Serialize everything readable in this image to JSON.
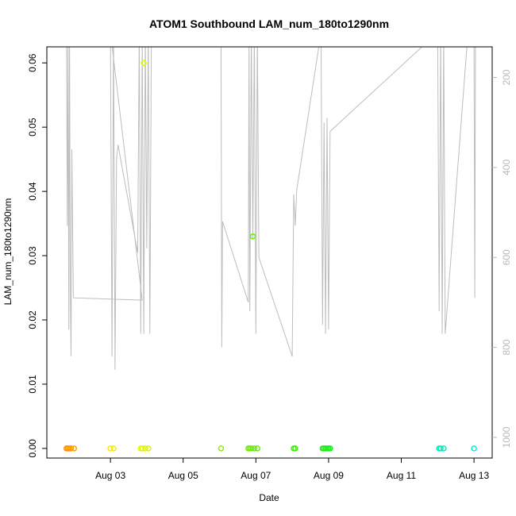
{
  "chart_data": {
    "type": "scatter",
    "title": "ATOM1 Southbound LAM_num_180to1290nm",
    "xlabel": "Date",
    "ylabel": "LAM_num_180to1290nm",
    "x_unit": "date",
    "xlim": [
      "2023-08-01T06:00",
      "2023-08-13T12:00"
    ],
    "ylim": [
      -0.0015,
      0.0625
    ],
    "x_ticks": [
      {
        "value": "2023-08-03",
        "label": "Aug 03"
      },
      {
        "value": "2023-08-05",
        "label": "Aug 05"
      },
      {
        "value": "2023-08-07",
        "label": "Aug 07"
      },
      {
        "value": "2023-08-09",
        "label": "Aug 09"
      },
      {
        "value": "2023-08-11",
        "label": "Aug 11"
      },
      {
        "value": "2023-08-13",
        "label": "Aug 13"
      }
    ],
    "y_ticks": [
      0.0,
      0.01,
      0.02,
      0.03,
      0.04,
      0.05,
      0.06
    ],
    "y_tick_labels": [
      "0.00",
      "0.01",
      "0.02",
      "0.03",
      "0.04",
      "0.05",
      "0.06"
    ],
    "right_axis": {
      "reversed": true,
      "ylim": [
        1046,
        132
      ],
      "ticks": [
        200,
        400,
        600,
        800,
        1000
      ],
      "tick_labels": [
        "200",
        "400",
        "600",
        "800",
        "1000"
      ],
      "color": "#b8b8b8"
    },
    "grid": false,
    "legend": "none",
    "points_series": {
      "marker": "open-circle",
      "color_scale": "time (orange to cyan)",
      "points": [
        {
          "x": "2023-08-01T19:00",
          "y": 0.0,
          "color": "#ff8c00"
        },
        {
          "x": "2023-08-01T20:00",
          "y": 0.0,
          "color": "#ff8c00"
        },
        {
          "x": "2023-08-01T21:00",
          "y": 0.0,
          "color": "#ff9600"
        },
        {
          "x": "2023-08-01T22:00",
          "y": 0.0,
          "color": "#ff9a00"
        },
        {
          "x": "2023-08-02T00:00",
          "y": 0.0,
          "color": "#ffa000"
        },
        {
          "x": "2023-08-03T00:00",
          "y": 0.0,
          "color": "#ffe800"
        },
        {
          "x": "2023-08-03T02:00",
          "y": 0.0,
          "color": "#f0f000"
        },
        {
          "x": "2023-08-03T20:00",
          "y": 0.0,
          "color": "#e6f500"
        },
        {
          "x": "2023-08-03T21:00",
          "y": 0.0,
          "color": "#e6f500"
        },
        {
          "x": "2023-08-03T22:00",
          "y": 0.06,
          "color": "#e0f500"
        },
        {
          "x": "2023-08-03T23:00",
          "y": 0.0,
          "color": "#ddf500"
        },
        {
          "x": "2023-08-04T01:00",
          "y": 0.0,
          "color": "#d8f500"
        },
        {
          "x": "2023-08-06T01:00",
          "y": 0.0,
          "color": "#8ff000"
        },
        {
          "x": "2023-08-06T19:00",
          "y": 0.0,
          "color": "#6ef000"
        },
        {
          "x": "2023-08-06T20:00",
          "y": 0.0,
          "color": "#6cf000"
        },
        {
          "x": "2023-08-06T21:00",
          "y": 0.0,
          "color": "#6af000"
        },
        {
          "x": "2023-08-06T22:00",
          "y": 0.033,
          "color": "#68f000"
        },
        {
          "x": "2023-08-06T23:00",
          "y": 0.0,
          "color": "#66f000"
        },
        {
          "x": "2023-08-07T01:00",
          "y": 0.0,
          "color": "#60f000"
        },
        {
          "x": "2023-08-08T01:00",
          "y": 0.0,
          "color": "#3cf000"
        },
        {
          "x": "2023-08-08T02:00",
          "y": 0.0,
          "color": "#3af000"
        },
        {
          "x": "2023-08-08T20:00",
          "y": 0.0,
          "color": "#1ef010"
        },
        {
          "x": "2023-08-08T21:00",
          "y": 0.0,
          "color": "#1cf010"
        },
        {
          "x": "2023-08-08T22:00",
          "y": 0.0,
          "color": "#1af014"
        },
        {
          "x": "2023-08-08T23:00",
          "y": 0.0,
          "color": "#18f018"
        },
        {
          "x": "2023-08-09T00:00",
          "y": 0.0,
          "color": "#16f01c"
        },
        {
          "x": "2023-08-09T01:00",
          "y": 0.0,
          "color": "#14f020"
        },
        {
          "x": "2023-08-12T01:00",
          "y": 0.0,
          "color": "#00f0b4"
        },
        {
          "x": "2023-08-12T02:00",
          "y": 0.0,
          "color": "#00f0b8"
        },
        {
          "x": "2023-08-12T04:00",
          "y": 0.0,
          "color": "#00f0c0"
        },
        {
          "x": "2023-08-13T00:00",
          "y": 0.0,
          "color": "#00f0dc"
        }
      ]
    },
    "line_series": {
      "axis": "right",
      "color": "#bdbdbd",
      "points": [
        [
          "2023-08-01T19:00",
          100
        ],
        [
          "2023-08-01T19:30",
          530
        ],
        [
          "2023-08-01T20:00",
          100
        ],
        [
          "2023-08-01T20:30",
          760
        ],
        [
          "2023-08-01T21:00",
          100
        ],
        [
          "2023-08-01T21:30",
          680
        ],
        [
          "2023-08-01T22:00",
          820
        ],
        [
          "2023-08-01T22:30",
          360
        ],
        [
          "2023-08-01T23:30",
          690
        ],
        [
          "2023-08-03T21:00",
          695
        ],
        [
          "2023-08-03T00:00",
          100
        ],
        [
          "2023-08-03T01:00",
          820
        ],
        [
          "2023-08-03T02:00",
          100
        ],
        [
          "2023-08-03T03:00",
          850
        ],
        [
          "2023-08-03T04:00",
          380
        ],
        [
          "2023-08-03T05:00",
          350
        ],
        [
          "2023-08-03T18:00",
          590
        ],
        [
          "2023-08-03T19:00",
          100
        ],
        [
          "2023-08-03T20:00",
          770
        ],
        [
          "2023-08-03T21:00",
          100
        ],
        [
          "2023-08-03T22:00",
          770
        ],
        [
          "2023-08-03T23:00",
          100
        ],
        [
          "2023-08-04T00:00",
          580
        ],
        [
          "2023-08-04T01:00",
          100
        ],
        [
          "2023-08-04T02:00",
          770
        ],
        [
          "2023-08-04T03:00",
          100
        ],
        [
          "2023-08-06T01:00",
          100
        ],
        [
          "2023-08-06T01:30",
          800
        ],
        [
          "2023-08-06T02:00",
          520
        ],
        [
          "2023-08-06T19:00",
          700
        ],
        [
          "2023-08-06T19:30",
          100
        ],
        [
          "2023-08-06T20:00",
          720
        ],
        [
          "2023-08-06T21:00",
          100
        ],
        [
          "2023-08-06T22:00",
          560
        ],
        [
          "2023-08-06T23:00",
          100
        ],
        [
          "2023-08-07T00:00",
          770
        ],
        [
          "2023-08-07T01:00",
          100
        ],
        [
          "2023-08-07T02:00",
          600
        ],
        [
          "2023-08-08T00:00",
          820
        ],
        [
          "2023-08-08T01:00",
          460
        ],
        [
          "2023-08-08T02:00",
          530
        ],
        [
          "2023-08-08T03:00",
          450
        ],
        [
          "2023-08-08T19:00",
          100
        ],
        [
          "2023-08-08T20:00",
          750
        ],
        [
          "2023-08-08T21:00",
          300
        ],
        [
          "2023-08-08T22:00",
          770
        ],
        [
          "2023-08-08T23:00",
          290
        ],
        [
          "2023-08-09T00:00",
          760
        ],
        [
          "2023-08-09T01:00",
          320
        ],
        [
          "2023-08-12T00:00",
          100
        ],
        [
          "2023-08-12T01:00",
          720
        ],
        [
          "2023-08-12T02:00",
          100
        ],
        [
          "2023-08-12T03:00",
          770
        ],
        [
          "2023-08-12T04:00",
          100
        ],
        [
          "2023-08-12T05:00",
          770
        ],
        [
          "2023-08-12T20:00",
          100
        ],
        [
          "2023-08-13T00:00",
          100
        ],
        [
          "2023-08-13T00:30",
          690
        ],
        [
          "2023-08-13T01:00",
          100
        ]
      ]
    }
  }
}
